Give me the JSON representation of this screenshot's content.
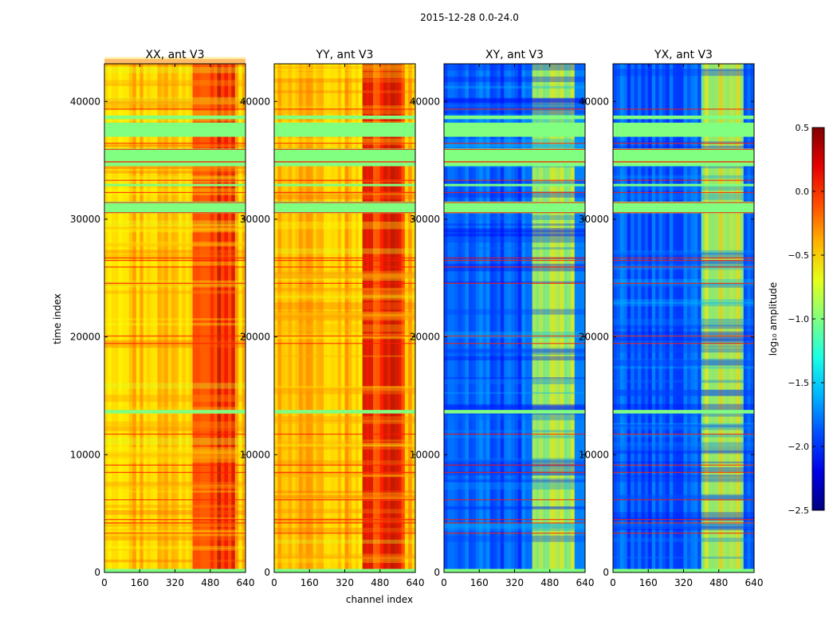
{
  "figure": {
    "suptitle": "2015-12-28 0.0-24.0",
    "xlabel": "channel index",
    "ylabel": "time index"
  },
  "chart_data": [
    {
      "type": "heatmap",
      "title": "XX, ant V3",
      "x_ticks": [
        0,
        160,
        320,
        480,
        640
      ],
      "y_ticks": [
        0,
        10000,
        20000,
        30000,
        40000
      ],
      "xlim": [
        0,
        640
      ],
      "ylim": [
        0,
        43200
      ],
      "base_level": -0.45,
      "hot_band_level": 0.15,
      "hot_channel_range": [
        400,
        600
      ]
    },
    {
      "type": "heatmap",
      "title": "YY, ant V3",
      "x_ticks": [
        0,
        160,
        320,
        480,
        640
      ],
      "y_ticks": [
        0,
        10000,
        20000,
        30000,
        40000
      ],
      "xlim": [
        0,
        640
      ],
      "ylim": [
        0,
        43200
      ],
      "base_level": -0.45,
      "hot_band_level": 0.1,
      "hot_channel_range": [
        400,
        600
      ]
    },
    {
      "type": "heatmap",
      "title": "XY, ant V3",
      "x_ticks": [
        0,
        160,
        320,
        480,
        640
      ],
      "y_ticks": [
        0,
        10000,
        20000,
        30000,
        40000
      ],
      "xlim": [
        0,
        640
      ],
      "ylim": [
        0,
        43200
      ],
      "base_level": -1.85,
      "hot_band_level": -0.8,
      "hot_channel_range": [
        400,
        600
      ]
    },
    {
      "type": "heatmap",
      "title": "YX, ant V3",
      "x_ticks": [
        0,
        160,
        320,
        480,
        640
      ],
      "y_ticks": [
        0,
        10000,
        20000,
        30000,
        40000
      ],
      "xlim": [
        0,
        640
      ],
      "ylim": [
        0,
        43200
      ],
      "base_level": -1.85,
      "hot_band_level": -0.8,
      "hot_channel_range": [
        400,
        600
      ]
    }
  ],
  "flagged_time_ranges": [
    [
      0,
      300
    ],
    [
      13500,
      13800
    ],
    [
      30500,
      31500
    ],
    [
      32800,
      33000
    ],
    [
      34500,
      36000
    ],
    [
      37000,
      38200
    ],
    [
      38500,
      38800
    ]
  ],
  "flagged_level": -1.0,
  "colorbar": {
    "label": "log₁₀ amplitude",
    "min": -2.5,
    "max": 0.5,
    "ticks": [
      -2.5,
      -2.0,
      -1.5,
      -1.0,
      -0.5,
      0.0,
      0.5
    ],
    "tick_labels": [
      "−2.5",
      "−2.0",
      "−1.5",
      "−1.0",
      "−0.5",
      "0.0",
      "0.5"
    ],
    "colormap": "jet"
  }
}
